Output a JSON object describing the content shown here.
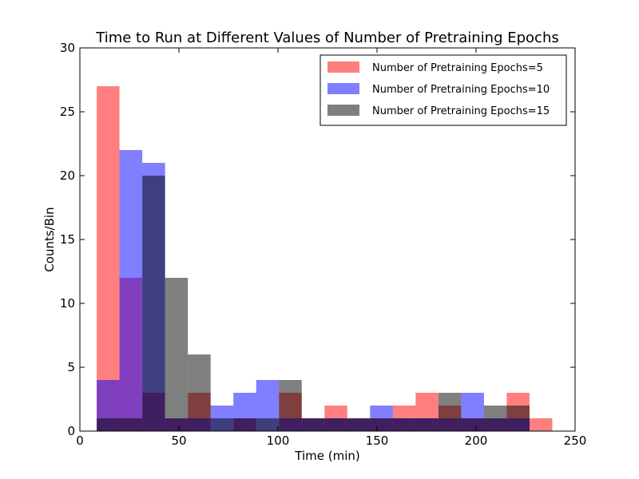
{
  "chart_data": {
    "type": "bar",
    "title": "Time to Run at Different Values of Number of Pretraining Epochs",
    "xlabel": "Time (min)",
    "ylabel": "Counts/Bin",
    "xlim": [
      0,
      250
    ],
    "ylim": [
      0,
      30
    ],
    "xticks": [
      0,
      50,
      100,
      150,
      200,
      250
    ],
    "yticks": [
      0,
      5,
      10,
      15,
      20,
      25,
      30
    ],
    "grid": false,
    "legend_position": "top-right",
    "bin_edges": [
      8.5,
      20,
      31.5,
      43,
      54.5,
      66,
      77.5,
      89,
      100.5,
      112,
      123.5,
      135,
      146.5,
      158,
      169.5,
      181,
      192.5,
      204,
      215.5,
      227,
      238.5
    ],
    "series": [
      {
        "name": "Number of Pretraining Epochs=5",
        "color": "#ff0000",
        "alpha": 0.5,
        "values": [
          27,
          12,
          3,
          1,
          3,
          0,
          1,
          0,
          3,
          1,
          2,
          1,
          1,
          2,
          3,
          2,
          1,
          1,
          3,
          1
        ]
      },
      {
        "name": "Number of Pretraining Epochs=10",
        "color": "#0000ff",
        "alpha": 0.5,
        "values": [
          4,
          22,
          21,
          1,
          1,
          2,
          3,
          4,
          1,
          1,
          1,
          1,
          2,
          1,
          1,
          1,
          3,
          1,
          1,
          0
        ]
      },
      {
        "name": "Number of Pretraining Epochs=15",
        "color": "#000000",
        "alpha": 0.5,
        "values": [
          1,
          1,
          20,
          12,
          6,
          1,
          1,
          1,
          4,
          1,
          1,
          1,
          1,
          1,
          1,
          3,
          1,
          2,
          2,
          0
        ]
      }
    ]
  }
}
